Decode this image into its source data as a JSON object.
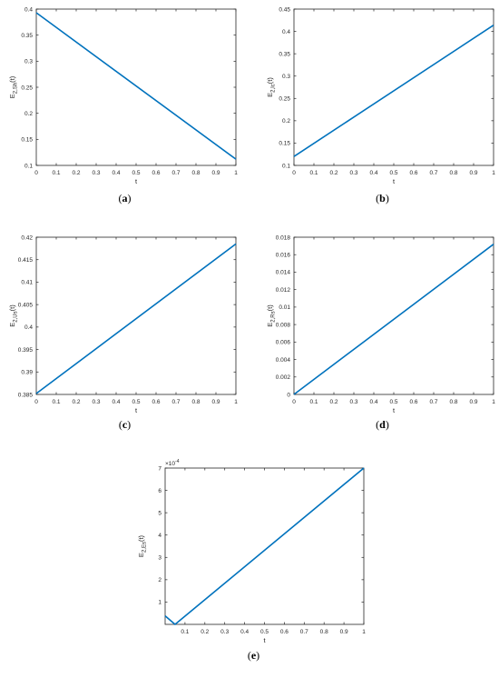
{
  "chart_data": [
    {
      "type": "line",
      "caption_letter": "a",
      "xlabel": "t",
      "ylabel": "E",
      "ylabel_sub": "2,Sh",
      "ylabel_suffix": "(t)",
      "xlim": [
        0,
        1
      ],
      "ylim": [
        0.1,
        0.4
      ],
      "xticks": [
        0,
        0.1,
        0.2,
        0.3,
        0.4,
        0.5,
        0.6,
        0.7,
        0.8,
        0.9,
        1
      ],
      "xtick_labels": [
        "0",
        "0.1",
        "0.2",
        "0.3",
        "0.4",
        "0.5",
        "0.6",
        "0.7",
        "0.8",
        "0.9",
        "1"
      ],
      "yticks": [
        0.1,
        0.15,
        0.2,
        0.25,
        0.3,
        0.35,
        0.4
      ],
      "ytick_labels": [
        "0.1",
        "0.15",
        "0.2",
        "0.25",
        "0.3",
        "0.35",
        "0.4"
      ],
      "color": "#0072BD",
      "series": [
        {
          "x": [
            0,
            1
          ],
          "y": [
            0.393,
            0.112
          ]
        }
      ]
    },
    {
      "type": "line",
      "caption_letter": "b",
      "xlabel": "t",
      "ylabel": "E",
      "ylabel_sub": "2,Ic",
      "ylabel_suffix": "(t)",
      "xlim": [
        0,
        1
      ],
      "ylim": [
        0.1,
        0.45
      ],
      "xticks": [
        0,
        0.1,
        0.2,
        0.3,
        0.4,
        0.5,
        0.6,
        0.7,
        0.8,
        0.9,
        1
      ],
      "xtick_labels": [
        "0",
        "0.1",
        "0.2",
        "0.3",
        "0.4",
        "0.5",
        "0.6",
        "0.7",
        "0.8",
        "0.9",
        "1"
      ],
      "yticks": [
        0.1,
        0.15,
        0.2,
        0.25,
        0.3,
        0.35,
        0.4,
        0.45
      ],
      "ytick_labels": [
        "0.1",
        "0.15",
        "0.2",
        "0.25",
        "0.3",
        "0.35",
        "0.4",
        "0.45"
      ],
      "color": "#0072BD",
      "series": [
        {
          "x": [
            0,
            1
          ],
          "y": [
            0.12,
            0.414
          ]
        }
      ]
    },
    {
      "type": "line",
      "caption_letter": "c",
      "xlabel": "t",
      "ylabel": "E",
      "ylabel_sub": "2,Us",
      "ylabel_suffix": "(t)",
      "xlim": [
        0,
        1
      ],
      "ylim": [
        0.385,
        0.42
      ],
      "xticks": [
        0,
        0.1,
        0.2,
        0.3,
        0.4,
        0.5,
        0.6,
        0.7,
        0.8,
        0.9,
        1
      ],
      "xtick_labels": [
        "0",
        "0.1",
        "0.2",
        "0.3",
        "0.4",
        "0.5",
        "0.6",
        "0.7",
        "0.8",
        "0.9",
        "1"
      ],
      "yticks": [
        0.385,
        0.39,
        0.395,
        0.4,
        0.405,
        0.41,
        0.415,
        0.42
      ],
      "ytick_labels": [
        "0.385",
        "0.39",
        "0.395",
        "0.4",
        "0.405",
        "0.41",
        "0.415",
        "0.42"
      ],
      "color": "#0072BD",
      "series": [
        {
          "x": [
            0,
            1
          ],
          "y": [
            0.3852,
            0.4185
          ]
        }
      ]
    },
    {
      "type": "line",
      "caption_letter": "d",
      "xlabel": "t",
      "ylabel": "E",
      "ylabel_sub": "2,Rs",
      "ylabel_suffix": "(t)",
      "xlim": [
        0,
        1
      ],
      "ylim": [
        0,
        0.018
      ],
      "xticks": [
        0,
        0.1,
        0.2,
        0.3,
        0.4,
        0.5,
        0.6,
        0.7,
        0.8,
        0.9,
        1
      ],
      "xtick_labels": [
        "0",
        "0.1",
        "0.2",
        "0.3",
        "0.4",
        "0.5",
        "0.6",
        "0.7",
        "0.8",
        "0.9",
        "1"
      ],
      "yticks": [
        0,
        0.002,
        0.004,
        0.006,
        0.008,
        0.01,
        0.012,
        0.014,
        0.016,
        0.018
      ],
      "ytick_labels": [
        "0",
        "0.002",
        "0.004",
        "0.006",
        "0.008",
        "0.01",
        "0.012",
        "0.014",
        "0.016",
        "0.018"
      ],
      "color": "#0072BD",
      "series": [
        {
          "x": [
            0,
            1
          ],
          "y": [
            0,
            0.0172
          ]
        }
      ]
    },
    {
      "type": "line",
      "caption_letter": "e",
      "xlabel": "t",
      "ylabel": "E",
      "ylabel_sub": "2,Es",
      "ylabel_suffix": "(t)",
      "exponent_label": "×10",
      "exponent_power": "-4",
      "xlim": [
        0,
        1
      ],
      "ylim": [
        0,
        7
      ],
      "xticks": [
        0.1,
        0.2,
        0.3,
        0.4,
        0.5,
        0.6,
        0.7,
        0.8,
        0.9,
        1
      ],
      "xtick_labels": [
        "0.1",
        "0.2",
        "0.3",
        "0.4",
        "0.5",
        "0.6",
        "0.7",
        "0.8",
        "0.9",
        "1"
      ],
      "yticks": [
        1,
        2,
        3,
        4,
        5,
        6,
        7
      ],
      "ytick_labels": [
        "1",
        "2",
        "3",
        "4",
        "5",
        "6",
        "7"
      ],
      "color": "#0072BD",
      "series": [
        {
          "x": [
            0,
            0.05,
            1
          ],
          "y": [
            0.38,
            0,
            7
          ]
        }
      ]
    }
  ]
}
